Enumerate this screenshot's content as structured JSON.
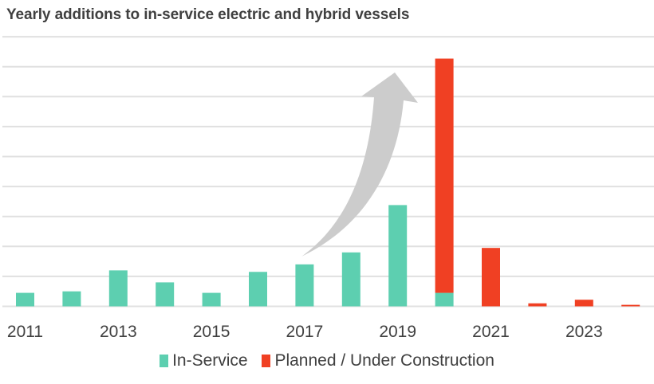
{
  "chart_data": {
    "type": "bar",
    "stacked": true,
    "title": "Yearly additions to in-service electric and hybrid vessels",
    "xlabel": "",
    "ylabel": "",
    "y_units": "gridline intervals (axis unlabeled)",
    "ylim": [
      0,
      9
    ],
    "grid": true,
    "categories": [
      "2011",
      "2012",
      "2013",
      "2014",
      "2015",
      "2016",
      "2017",
      "2018",
      "2019",
      "2020",
      "2021",
      "2022",
      "2023",
      "2024"
    ],
    "x_tick_labels": [
      "2011",
      "2013",
      "2015",
      "2017",
      "2019",
      "2021",
      "2023"
    ],
    "series": [
      {
        "name": "In-Service",
        "color": "#5dcfb0",
        "values": [
          0.45,
          0.5,
          1.2,
          0.8,
          0.45,
          1.15,
          1.4,
          1.8,
          3.38,
          0.45,
          0,
          0,
          0,
          0
        ]
      },
      {
        "name": "Planned / Under Construction",
        "color": "#f04023",
        "values": [
          0,
          0,
          0,
          0,
          0,
          0,
          0,
          0,
          0,
          7.82,
          1.95,
          0.1,
          0.22,
          0.05
        ]
      }
    ],
    "legend": {
      "position": "bottom",
      "entries": [
        "In-Service",
        "Planned / Under Construction"
      ]
    },
    "annotations": [
      {
        "type": "curved-arrow",
        "description": "Gray upward curved arrow indicating growth",
        "from_category": "2017",
        "to_category": "2019",
        "color": "#cccccc"
      }
    ]
  },
  "colors": {
    "grid": "#e0e0e0",
    "text": "#404040",
    "arrow": "#cccccc"
  }
}
